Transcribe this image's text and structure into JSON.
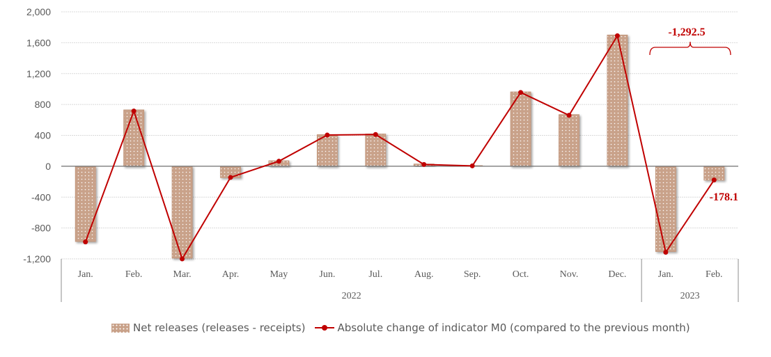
{
  "chart_data": {
    "type": "bar+line",
    "title": "",
    "categories": [
      "Jan.",
      "Feb.",
      "Mar.",
      "Apr.",
      "May",
      "Jun.",
      "Jul.",
      "Aug.",
      "Sep.",
      "Oct.",
      "Nov.",
      "Dec.",
      "Jan.",
      "Feb."
    ],
    "groups": [
      {
        "label": "2022",
        "count": 12
      },
      {
        "label": "2023",
        "count": 2
      }
    ],
    "series": [
      {
        "name": "Net releases (releases - receipts)",
        "type": "bar",
        "color": "#c9a28a",
        "values": [
          -975,
          730,
          -1190,
          -148,
          71,
          409,
          418,
          29,
          9,
          963,
          669,
          1700,
          -1105,
          -180
        ]
      },
      {
        "name": "Absolute change of indicator M0 (compared to the previous month)",
        "type": "line",
        "color": "#c00000",
        "values": [
          -980,
          715,
          -1200,
          -145,
          65,
          404,
          411,
          23,
          5,
          956,
          660,
          1690,
          -1114.4,
          -178.1
        ]
      }
    ],
    "ylim": [
      -1200,
      2000
    ],
    "yticks": [
      -1200,
      -800,
      -400,
      0,
      400,
      800,
      1200,
      1600,
      2000
    ],
    "ytick_labels": [
      "-1,200",
      "-800",
      "-400",
      "0",
      "400",
      "800",
      "1,200",
      "1,600",
      "2,000"
    ],
    "grid": true,
    "legend_position": "bottom",
    "annotations": {
      "bracket_total": "-1,292.5",
      "feb_value": "-178.1"
    }
  }
}
